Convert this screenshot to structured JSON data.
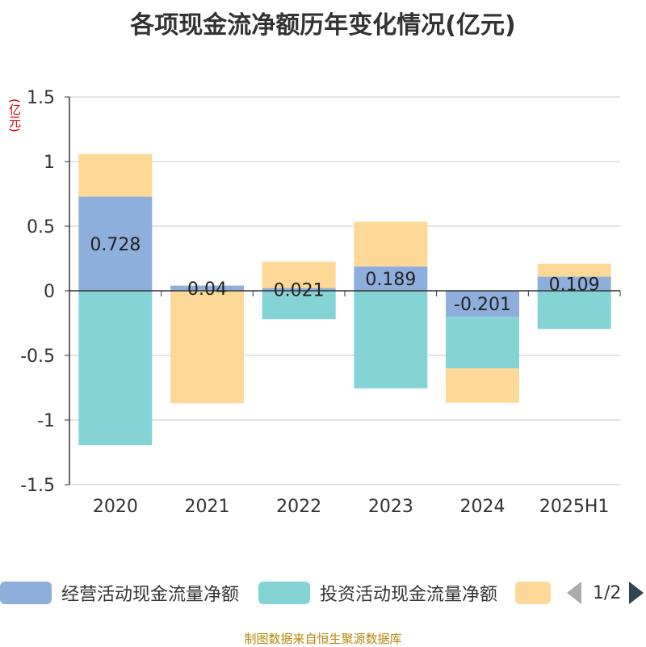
{
  "title": "各项现金流净额历年变化情况(亿元)",
  "unit_label": "(亿元)",
  "source": "制图数据来自恒生聚源数据库",
  "pager": {
    "text": "1/2"
  },
  "colors": {
    "operating": "#8eaedb",
    "investing": "#84d4d6",
    "financing": "#fdd896"
  },
  "legend": [
    {
      "label": "经营活动现金流量净额",
      "color": "#8eaedb"
    },
    {
      "label": "投资活动现金流量净额",
      "color": "#84d4d6"
    },
    {
      "label": "",
      "color": "#fdd896"
    }
  ],
  "chart_data": {
    "type": "bar",
    "stacked": true,
    "categories": [
      "2020",
      "2021",
      "2022",
      "2023",
      "2024",
      "2025H1"
    ],
    "ylim": [
      -1.5,
      1.5
    ],
    "yticks": [
      1.5,
      1,
      0.5,
      0,
      -0.5,
      -1,
      -1.5
    ],
    "ytick_labels": [
      "1.5",
      "1",
      "0.5",
      "0",
      "-0.5",
      "-1",
      "-1.5"
    ],
    "grid": true,
    "legend_position": "bottom",
    "series": [
      {
        "name": "经营活动现金流量净额",
        "values": [
          0.728,
          0.04,
          0.021,
          0.189,
          -0.201,
          0.109
        ],
        "labels": [
          "0.728",
          "0.04",
          "0.021",
          "0.189",
          "-0.201",
          "0.109"
        ]
      },
      {
        "name": "投资活动现金流量净额",
        "values": [
          -1.195,
          0.0,
          -0.22,
          -0.755,
          -0.4,
          -0.295
        ]
      },
      {
        "values": [
          0.33,
          -0.87,
          0.205,
          0.345,
          -0.265,
          0.1
        ]
      }
    ]
  }
}
